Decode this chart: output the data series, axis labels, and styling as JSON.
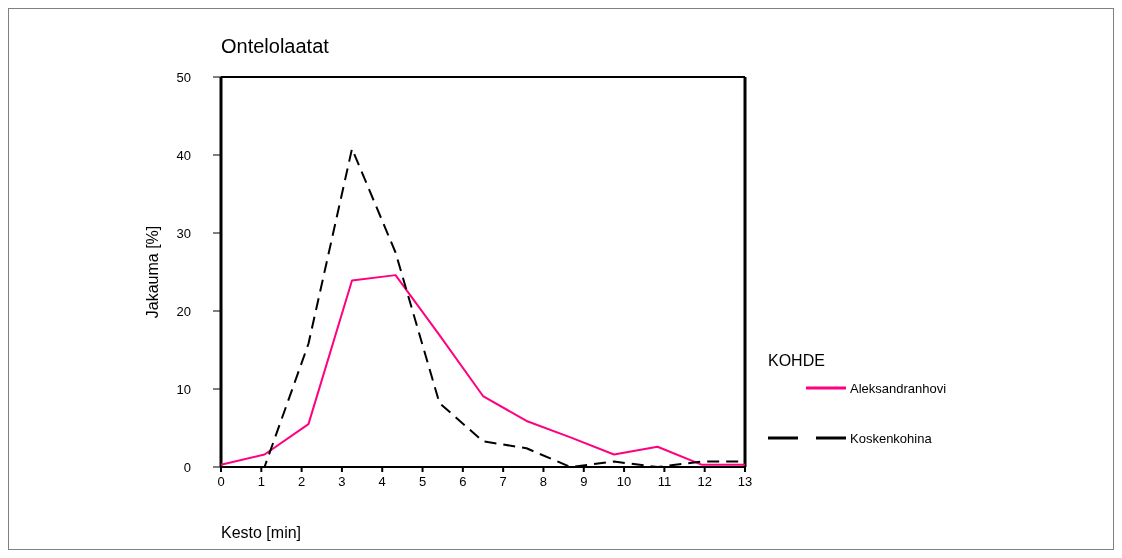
{
  "chart_data": {
    "type": "line",
    "title": "Ontelolaatat",
    "xlabel": "Kesto [min]",
    "ylabel": "Jakauma [%]",
    "legend_title": "KOHDE",
    "x": [
      0,
      1.08,
      2.17,
      3.25,
      4.33,
      5.42,
      6.5,
      7.58,
      8.67,
      9.75,
      10.83,
      11.92,
      13
    ],
    "xlim": [
      0,
      13
    ],
    "xticks": [
      0,
      1,
      2,
      3,
      4,
      5,
      6,
      7,
      8,
      9,
      10,
      11,
      12,
      13
    ],
    "ylim": [
      0,
      50
    ],
    "yticks": [
      0,
      10,
      20,
      30,
      40,
      50
    ],
    "grid": false,
    "legend": "right",
    "marker": "none",
    "series": [
      {
        "name": "Aleksandranhovi",
        "color": "#ff0080",
        "line_style": "solid",
        "values": [
          0.3,
          1.6,
          5.5,
          23.9,
          24.6,
          16.9,
          9.1,
          5.9,
          3.8,
          1.6,
          2.6,
          0.3,
          0.3
        ]
      },
      {
        "name": "Koskenkohina",
        "color": "#000000",
        "line_style": "dashed",
        "values": [
          0,
          0,
          15.8,
          40.8,
          27.5,
          8.2,
          3.3,
          2.4,
          0,
          0.7,
          0,
          0.7,
          0.7
        ]
      }
    ]
  }
}
